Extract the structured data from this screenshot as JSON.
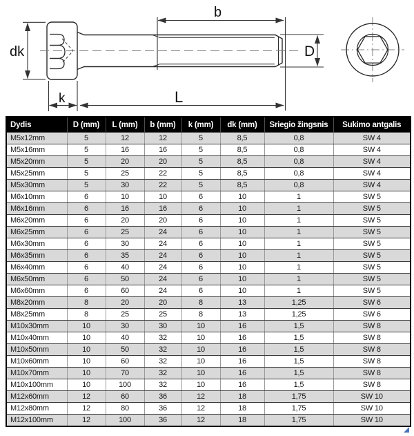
{
  "diagram": {
    "labels": {
      "dk": "dk",
      "k": "k",
      "L": "L",
      "b": "b",
      "D": "D"
    }
  },
  "table": {
    "columns": [
      "Dydis",
      "D (mm)",
      "L (mm)",
      "b (mm)",
      "k (mm)",
      "dk (mm)",
      "Sriegio žingsnis",
      "Sukimo antgalis"
    ],
    "rows": [
      [
        "M5x12mm",
        "5",
        "12",
        "12",
        "5",
        "8,5",
        "0,8",
        "SW 4"
      ],
      [
        "M5x16mm",
        "5",
        "16",
        "16",
        "5",
        "8,5",
        "0,8",
        "SW 4"
      ],
      [
        "M5x20mm",
        "5",
        "20",
        "20",
        "5",
        "8,5",
        "0,8",
        "SW 4"
      ],
      [
        "M5x25mm",
        "5",
        "25",
        "22",
        "5",
        "8,5",
        "0,8",
        "SW 4"
      ],
      [
        "M5x30mm",
        "5",
        "30",
        "22",
        "5",
        "8,5",
        "0,8",
        "SW 4"
      ],
      [
        "M6x10mm",
        "6",
        "10",
        "10",
        "6",
        "10",
        "1",
        "SW 5"
      ],
      [
        "M6x16mm",
        "6",
        "16",
        "16",
        "6",
        "10",
        "1",
        "SW 5"
      ],
      [
        "M6x20mm",
        "6",
        "20",
        "20",
        "6",
        "10",
        "1",
        "SW 5"
      ],
      [
        "M6x25mm",
        "6",
        "25",
        "24",
        "6",
        "10",
        "1",
        "SW 5"
      ],
      [
        "M6x30mm",
        "6",
        "30",
        "24",
        "6",
        "10",
        "1",
        "SW 5"
      ],
      [
        "M6x35mm",
        "6",
        "35",
        "24",
        "6",
        "10",
        "1",
        "SW 5"
      ],
      [
        "M6x40mm",
        "6",
        "40",
        "24",
        "6",
        "10",
        "1",
        "SW 5"
      ],
      [
        "M6x50mm",
        "6",
        "50",
        "24",
        "6",
        "10",
        "1",
        "SW 5"
      ],
      [
        "M6x60mm",
        "6",
        "60",
        "24",
        "6",
        "10",
        "1",
        "SW 5"
      ],
      [
        "M8x20mm",
        "8",
        "20",
        "20",
        "8",
        "13",
        "1,25",
        "SW 6"
      ],
      [
        "M8x25mm",
        "8",
        "25",
        "25",
        "8",
        "13",
        "1,25",
        "SW 6"
      ],
      [
        "M10x30mm",
        "10",
        "30",
        "30",
        "10",
        "16",
        "1,5",
        "SW 8"
      ],
      [
        "M10x40mm",
        "10",
        "40",
        "32",
        "10",
        "16",
        "1,5",
        "SW 8"
      ],
      [
        "M10x50mm",
        "10",
        "50",
        "32",
        "10",
        "16",
        "1,5",
        "SW 8"
      ],
      [
        "M10x60mm",
        "10",
        "60",
        "32",
        "10",
        "16",
        "1,5",
        "SW 8"
      ],
      [
        "M10x70mm",
        "10",
        "70",
        "32",
        "10",
        "16",
        "1,5",
        "SW 8"
      ],
      [
        "M10x100mm",
        "10",
        "100",
        "32",
        "10",
        "16",
        "1,5",
        "SW 8"
      ],
      [
        "M12x60mm",
        "12",
        "60",
        "36",
        "12",
        "18",
        "1,75",
        "SW 10"
      ],
      [
        "M12x80mm",
        "12",
        "80",
        "36",
        "12",
        "18",
        "1,75",
        "SW 10"
      ],
      [
        "M12x100mm",
        "12",
        "100",
        "36",
        "12",
        "18",
        "1,75",
        "SW 10"
      ]
    ]
  },
  "colors": {
    "header_bg": "#000000",
    "header_text": "#ffffff",
    "stripe": "#d9d9d9",
    "row_border": "#3d3d3d",
    "corner_marker": "#4a72b8",
    "drawing_line": "#2a2a2a",
    "dimension_line": "#333333",
    "centerline": "#808080"
  }
}
